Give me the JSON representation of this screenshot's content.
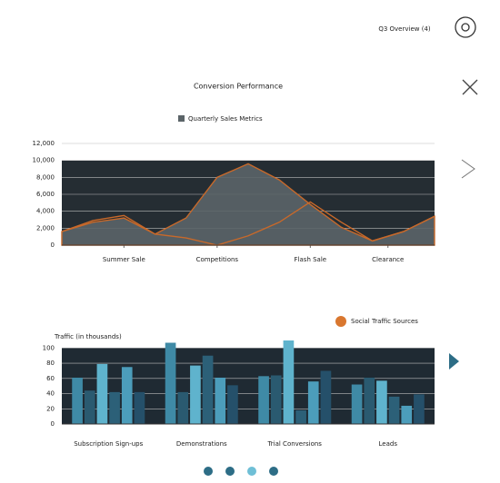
{
  "ui": {
    "header_label": "Q3 Overview (4)"
  },
  "chart_data": [
    {
      "type": "area",
      "title": "Conversion Performance",
      "x": [
        0,
        1,
        2,
        3,
        4,
        5,
        6,
        7,
        8,
        9,
        10,
        11,
        12
      ],
      "xlim": [
        0,
        12
      ],
      "xticks": [
        {
          "value": 2,
          "label": "Summer Sale"
        },
        {
          "value": 5,
          "label": "Competitions"
        },
        {
          "value": 8,
          "label": "Flash Sale"
        },
        {
          "value": 10.5,
          "label": "Clearance"
        }
      ],
      "ylim": [
        0,
        12000
      ],
      "yticks": [
        0,
        {
          "value": 2000,
          "label": "2,000"
        },
        {
          "value": 4000,
          "label": "4,000"
        },
        {
          "value": 6000,
          "label": "6,000"
        },
        {
          "value": 8000,
          "label": "8,000"
        },
        {
          "value": 10000,
          "label": "10,000"
        },
        {
          "value": 12000,
          "label": "12,000"
        }
      ],
      "grid": true,
      "series": [
        {
          "name": "Quarterly Sales Metrics",
          "color": "#5b6468",
          "line_color": "#c8692a",
          "values": [
            1600,
            2700,
            3200,
            1300,
            3200,
            8000,
            9600,
            7700,
            4800,
            2100,
            500,
            1600,
            3400
          ]
        },
        {
          "color": "#c8692a",
          "values": [
            1600,
            2900,
            3500,
            1300,
            850,
            0,
            1100,
            2700,
            5100,
            2700,
            500,
            1600,
            3400
          ]
        }
      ]
    },
    {
      "type": "bar",
      "title": "Traffic (in thousands)",
      "legend_label": "Social Traffic Sources",
      "legend_color": "#d9772f",
      "categories": [
        "Subscription Sign-ups",
        "Demonstrations",
        "Trial Conversions",
        "Leads"
      ],
      "ylim": [
        0,
        110
      ],
      "yticks": [
        0,
        20,
        40,
        60,
        80,
        100
      ],
      "grid": true,
      "series": [
        {
          "color": "#3f8aa6",
          "values": [
            61,
            107,
            63,
            52
          ]
        },
        {
          "color": "#2a5a70",
          "values": [
            44,
            42,
            64,
            61
          ]
        },
        {
          "color": "#5fb3cd",
          "values": [
            79,
            77,
            110,
            57
          ]
        },
        {
          "color": "#2c6078",
          "values": [
            42,
            90,
            18,
            36
          ]
        },
        {
          "color": "#4c9dbb",
          "values": [
            75,
            61,
            56,
            24
          ]
        },
        {
          "color": "#25506a",
          "values": [
            42,
            51,
            70,
            39
          ]
        }
      ]
    }
  ]
}
